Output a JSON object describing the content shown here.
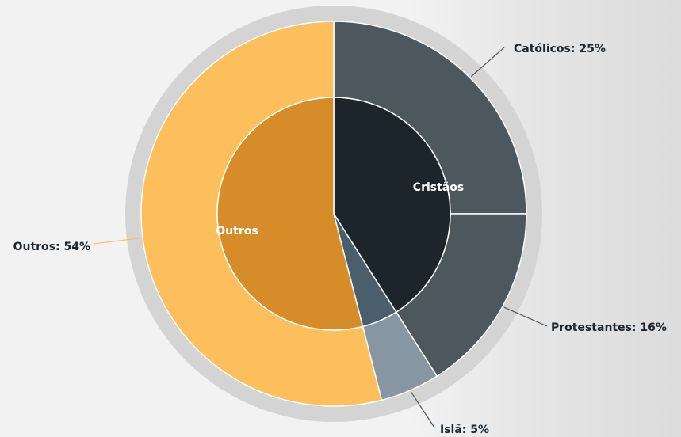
{
  "chart_data": {
    "type": "sunburst",
    "inner": {
      "labels": [
        "Cristãos",
        null,
        "Outros"
      ],
      "values": [
        41,
        5,
        54
      ],
      "colors": [
        "#1c252b",
        "#4b5e6b",
        "#d68c28"
      ]
    },
    "outer": {
      "labels": [
        "Católicos: 25%",
        "Protestantes: 16%",
        "Islã: 5%",
        "Outros: 54%"
      ],
      "values": [
        25,
        16,
        5,
        54
      ],
      "colors": [
        "#4d575e",
        "#4d575e",
        "#8796a1",
        "#fdbf5b"
      ]
    }
  }
}
